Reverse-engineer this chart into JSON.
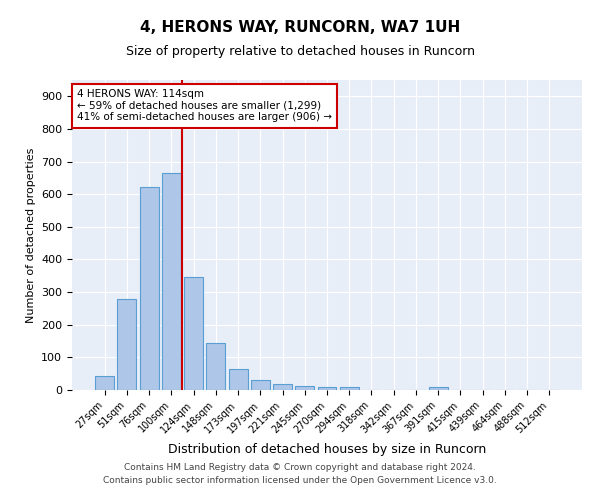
{
  "title1": "4, HERONS WAY, RUNCORN, WA7 1UH",
  "title2": "Size of property relative to detached houses in Runcorn",
  "xlabel": "Distribution of detached houses by size in Runcorn",
  "ylabel": "Number of detached properties",
  "categories": [
    "27sqm",
    "51sqm",
    "76sqm",
    "100sqm",
    "124sqm",
    "148sqm",
    "173sqm",
    "197sqm",
    "221sqm",
    "245sqm",
    "270sqm",
    "294sqm",
    "318sqm",
    "342sqm",
    "367sqm",
    "391sqm",
    "415sqm",
    "439sqm",
    "464sqm",
    "488sqm",
    "512sqm"
  ],
  "values": [
    42,
    278,
    621,
    666,
    347,
    145,
    65,
    30,
    18,
    13,
    10,
    9,
    0,
    0,
    0,
    9,
    0,
    0,
    0,
    0,
    0
  ],
  "bar_color": "#aec6e8",
  "bar_edge_color": "#5a9fd4",
  "vline_x": 3.5,
  "vline_color": "#cc0000",
  "annotation_text": "4 HERONS WAY: 114sqm\n← 59% of detached houses are smaller (1,299)\n41% of semi-detached houses are larger (906) →",
  "annotation_box_color": "#ffffff",
  "annotation_box_edge": "#cc0000",
  "ylim": [
    0,
    950
  ],
  "yticks": [
    0,
    100,
    200,
    300,
    400,
    500,
    600,
    700,
    800,
    900
  ],
  "bg_color": "#e8eef8",
  "footer": "Contains HM Land Registry data © Crown copyright and database right 2024.\nContains public sector information licensed under the Open Government Licence v3.0."
}
